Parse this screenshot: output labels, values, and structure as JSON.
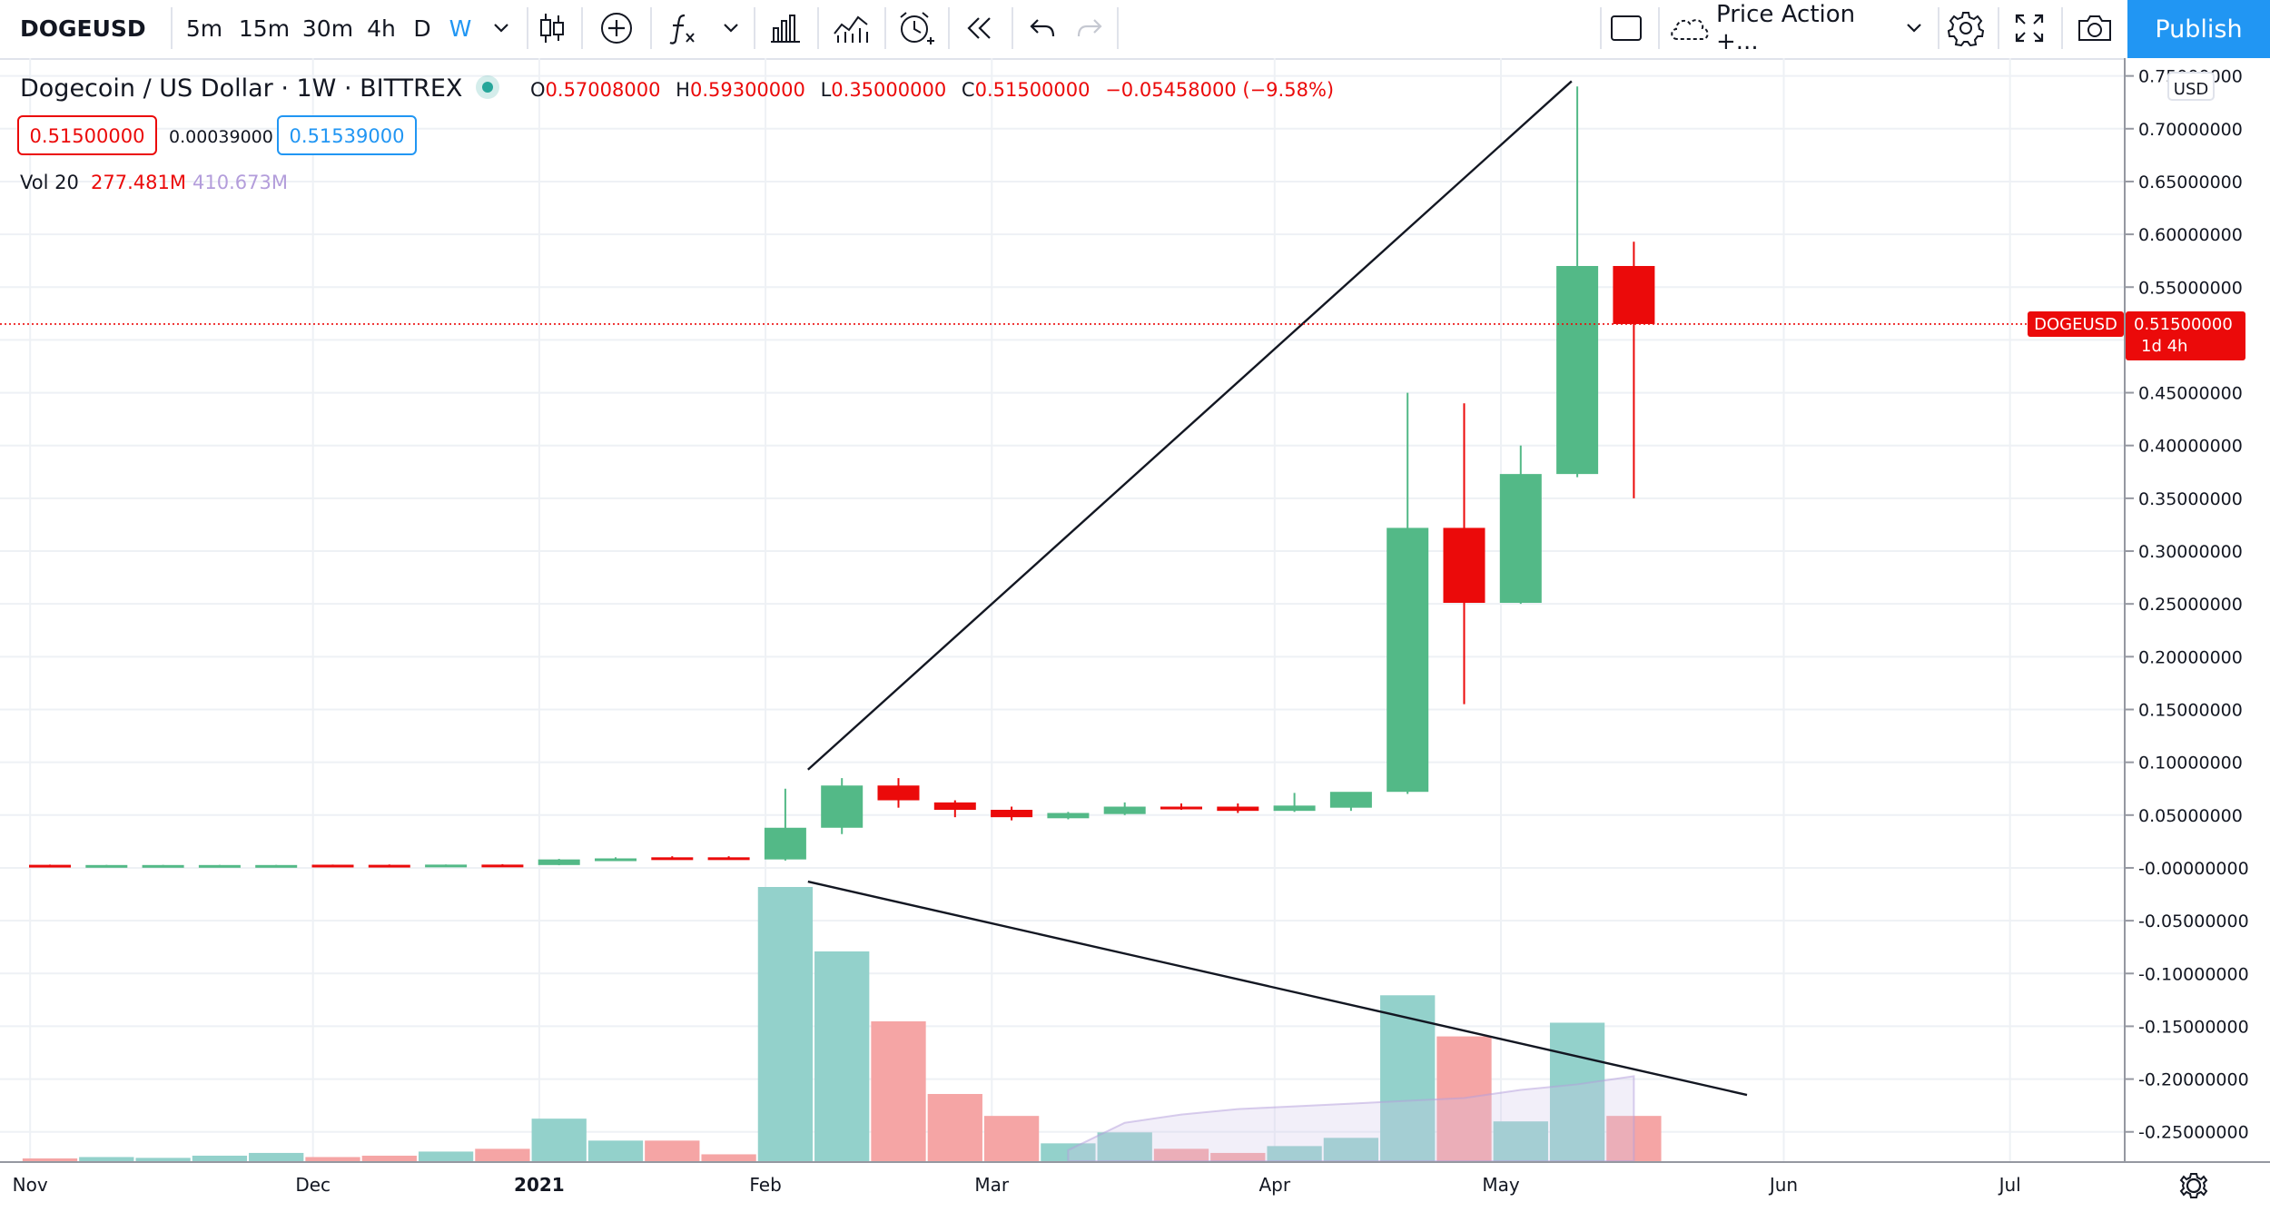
{
  "toolbar": {
    "symbol": "DOGEUSD",
    "intervals": [
      "5m",
      "15m",
      "30m",
      "4h",
      "D",
      "W"
    ],
    "active_interval": "W",
    "layout_name": "Price Action +...",
    "publish_label": "Publish"
  },
  "legend": {
    "title": "Dogecoin / US Dollar · 1W · BITTREX",
    "ohlc": {
      "o_label": "O",
      "o": "0.57008000",
      "h_label": "H",
      "h": "0.59300000",
      "l_label": "L",
      "l": "0.35000000",
      "c_label": "C",
      "c": "0.51500000",
      "change": "−0.05458000 (−9.58%)"
    },
    "bid": "0.51500000",
    "spread": "0.00039000",
    "ask": "0.51539000",
    "vol_label": "Vol 20",
    "vol_value": "277.481M",
    "vol_ma": "410.673M"
  },
  "price_label": {
    "symbol": "DOGEUSD",
    "price": "0.51500000",
    "countdown": "1d 4h"
  },
  "currency": "USD",
  "colors": {
    "up": "#53b987",
    "down": "#eb0a0a",
    "vol_up": "#93d1cb",
    "vol_down": "#f5a5a5",
    "accent": "#2196f3",
    "grid": "#eef1f5"
  },
  "chart_data": {
    "type": "candlestick",
    "title": "Dogecoin / US Dollar · 1W · BITTREX",
    "x_tick_labels": [
      "Nov",
      "Dec",
      "2021",
      "Feb",
      "Mar",
      "Apr",
      "May",
      "Jun",
      "Jul"
    ],
    "y_tick_labels": [
      "0.75000000",
      "0.70000000",
      "0.65000000",
      "0.60000000",
      "0.55000000",
      "0.50000000",
      "0.45000000",
      "0.40000000",
      "0.35000000",
      "0.30000000",
      "0.25000000",
      "0.20000000",
      "0.15000000",
      "0.10000000",
      "0.05000000",
      "-0.00000000",
      "-0.05000000",
      "-0.10000000",
      "-0.15000000",
      "-0.20000000",
      "-0.25000000"
    ],
    "y_ticks": [
      0.75,
      0.7,
      0.65,
      0.6,
      0.55,
      0.5,
      0.45,
      0.4,
      0.35,
      0.3,
      0.25,
      0.2,
      0.15,
      0.1,
      0.05,
      0.0,
      -0.05,
      -0.1,
      -0.15,
      -0.2,
      -0.25
    ],
    "ylim": [
      -0.27,
      0.76
    ],
    "x_tick_index": [
      0,
      5,
      9,
      13,
      17,
      22,
      26,
      31,
      35
    ],
    "candles": [
      {
        "o": 0.0029,
        "h": 0.0031,
        "l": 0.0026,
        "c": 0.0027
      },
      {
        "o": 0.0026,
        "h": 0.0028,
        "l": 0.0025,
        "c": 0.0027
      },
      {
        "o": 0.0026,
        "h": 0.0028,
        "l": 0.0025,
        "c": 0.0027
      },
      {
        "o": 0.0026,
        "h": 0.0028,
        "l": 0.0025,
        "c": 0.0027
      },
      {
        "o": 0.0026,
        "h": 0.0028,
        "l": 0.0025,
        "c": 0.0027
      },
      {
        "o": 0.003,
        "h": 0.0031,
        "l": 0.0025,
        "c": 0.0026
      },
      {
        "o": 0.0029,
        "h": 0.0032,
        "l": 0.0025,
        "c": 0.0026
      },
      {
        "o": 0.0028,
        "h": 0.0032,
        "l": 0.0026,
        "c": 0.0031
      },
      {
        "o": 0.0031,
        "h": 0.0035,
        "l": 0.0028,
        "c": 0.003
      },
      {
        "o": 0.0027,
        "h": 0.0085,
        "l": 0.0025,
        "c": 0.008
      },
      {
        "o": 0.008,
        "h": 0.01,
        "l": 0.007,
        "c": 0.009
      },
      {
        "o": 0.01,
        "h": 0.011,
        "l": 0.008,
        "c": 0.009
      },
      {
        "o": 0.01,
        "h": 0.011,
        "l": 0.009,
        "c": 0.0095
      },
      {
        "o": 0.008,
        "h": 0.075,
        "l": 0.007,
        "c": 0.038
      },
      {
        "o": 0.038,
        "h": 0.085,
        "l": 0.032,
        "c": 0.078
      },
      {
        "o": 0.078,
        "h": 0.085,
        "l": 0.057,
        "c": 0.064
      },
      {
        "o": 0.062,
        "h": 0.064,
        "l": 0.048,
        "c": 0.055
      },
      {
        "o": 0.055,
        "h": 0.058,
        "l": 0.045,
        "c": 0.048
      },
      {
        "o": 0.047,
        "h": 0.053,
        "l": 0.046,
        "c": 0.052
      },
      {
        "o": 0.051,
        "h": 0.062,
        "l": 0.05,
        "c": 0.058
      },
      {
        "o": 0.058,
        "h": 0.061,
        "l": 0.055,
        "c": 0.057
      },
      {
        "o": 0.058,
        "h": 0.061,
        "l": 0.052,
        "c": 0.054
      },
      {
        "o": 0.054,
        "h": 0.071,
        "l": 0.053,
        "c": 0.059
      },
      {
        "o": 0.057,
        "h": 0.071,
        "l": 0.054,
        "c": 0.072
      },
      {
        "o": 0.072,
        "h": 0.45,
        "l": 0.07,
        "c": 0.322
      },
      {
        "o": 0.322,
        "h": 0.44,
        "l": 0.155,
        "c": 0.251
      },
      {
        "o": 0.251,
        "h": 0.4,
        "l": 0.25,
        "c": 0.373
      },
      {
        "o": 0.373,
        "h": 0.74,
        "l": 0.37,
        "c": 0.57
      },
      {
        "o": 0.57,
        "h": 0.593,
        "l": 0.35,
        "c": 0.515
      }
    ],
    "volumes": [
      0.01,
      0.015,
      0.012,
      0.02,
      0.03,
      0.015,
      0.02,
      0.035,
      0.045,
      0.155,
      0.075,
      0.075,
      0.025,
      1.0,
      0.765,
      0.51,
      0.245,
      0.165,
      0.065,
      0.105,
      0.045,
      0.03,
      0.055,
      0.085,
      0.605,
      0.455,
      0.145,
      0.505,
      0.165
    ],
    "volume_ma": [
      0.04,
      0.14,
      0.17,
      0.19,
      0.2,
      0.21,
      0.22,
      0.23,
      0.26,
      0.28,
      0.31
    ],
    "volume_ma_start_index": 18,
    "series": [
      {
        "name": "DOGEUSD",
        "type": "candlestick"
      },
      {
        "name": "Vol 20",
        "type": "bar"
      }
    ],
    "trendlines": [
      {
        "x1": 13.4,
        "y1": 0.093,
        "x2": 26.9,
        "y2": 0.745
      },
      {
        "x1": 13.4,
        "y1": -0.013,
        "x2": 30.0,
        "y2": -0.215
      }
    ]
  }
}
